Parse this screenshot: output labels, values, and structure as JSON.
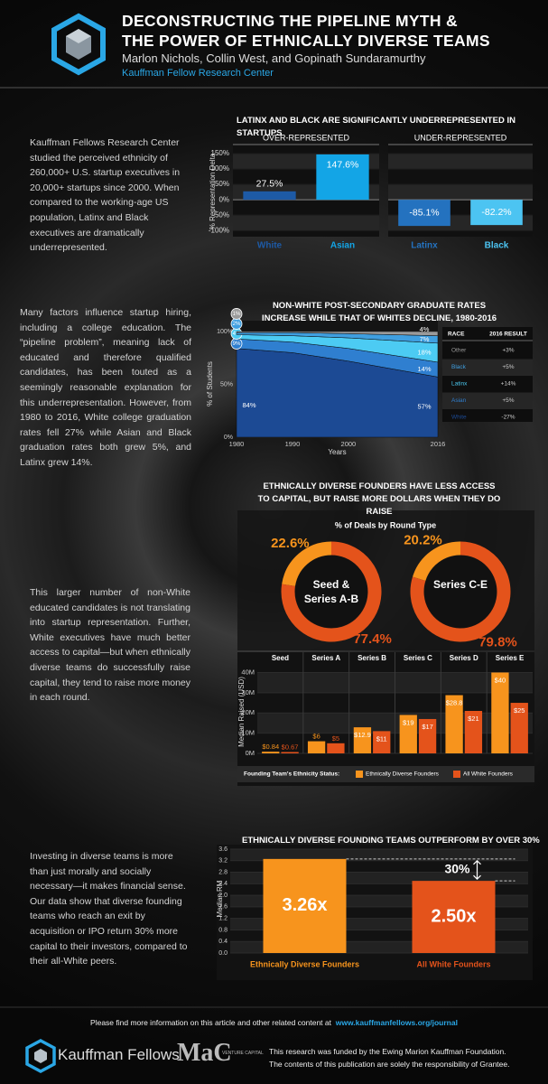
{
  "header": {
    "title_lines": [
      "DECONSTRUCTING THE PIPELINE MYTH &",
      "THE POWER OF ETHNICALLY DIVERSE TEAMS"
    ],
    "authors": "Marlon Nichols, Collin West, and Gopinath Sundaramurthy",
    "organization": "Kauffman Fellow Research Center"
  },
  "paragraphs": [
    "Kauffman Fellows Research Center studied the perceived ethnicity of 260,000+ U.S. startup executives in 20,000+ startups since 2000. When compared to the working-age US population, Latinx and Black executives are dramatically underrepresented.",
    "Many factors influence startup hiring, including a college education. The “pipeline problem”, meaning lack of educated and therefore qualified candidates, has been touted as a seemingly reasonable explanation for this underrepresentation. However, from 1980 to 2016, White college graduation rates fell 27% while Asian and Black graduation rates both grew 5%, and Latinx grew 14%.",
    "This larger number of non-White educated candidates is not translating into startup representation. Further, White executives have much better access to capital—but when ethnically diverse teams do successfully raise capital, they tend to raise more money in each round.",
    "Investing in diverse teams is more than just morally and socially necessary—it makes financial sense. Our data show that diverse founding teams who reach an exit by acquisition or IPO return 30% more capital to their investors, compared to their all-White peers."
  ],
  "chart_data": [
    {
      "type": "bar",
      "title": "LATINX AND BLACK ARE SIGNIFICANTLY UNDERREPRESENTED IN STARTUPS",
      "panel_labels": [
        "OVER-REPRESENTED",
        "UNDER-REPRESENTED"
      ],
      "y_label": "% Representation Delta",
      "categories": [
        "White",
        "Asian",
        "Latinx",
        "Black"
      ],
      "values": [
        27.5,
        147.6,
        -85.1,
        -82.2
      ],
      "value_labels": [
        "27.5%",
        "147.6%",
        "-85.1%",
        "-82.2%"
      ],
      "colors": [
        "#1d5aa6",
        "#13a5e6",
        "#2472bf",
        "#4cc4f2"
      ],
      "ylim": [
        -120,
        165
      ],
      "yticks": [
        {
          "value": 150,
          "label": "150%"
        },
        {
          "value": 100,
          "label": "100%"
        },
        {
          "value": 50,
          "label": "50%"
        },
        {
          "value": 0,
          "label": "0%"
        },
        {
          "value": -50,
          "label": "-50%"
        },
        {
          "value": -100,
          "label": "-100%"
        }
      ]
    },
    {
      "type": "area",
      "title": "NON-WHITE POST-SECONDARY GRADUATE RATES INCREASE WHILE THAT OF WHITES DECLINE, 1980-2016",
      "x_label": "Years",
      "y_label": "% of Students",
      "stacked": true,
      "x": [
        1980,
        1990,
        2000,
        2016
      ],
      "xlim": [
        1980,
        2016
      ],
      "xticks": [
        1980,
        1990,
        2000,
        2016
      ],
      "ylim": [
        0,
        100
      ],
      "yticks": [
        {
          "value": 0,
          "label": "0%"
        },
        {
          "value": 50,
          "label": "50%"
        },
        {
          "value": 100,
          "label": "100%"
        }
      ],
      "table_headers": [
        "RACE",
        "2016 RESULT"
      ],
      "series": [
        {
          "name": "White",
          "color": "#1c4a94",
          "values": [
            84,
            80,
            72,
            57
          ],
          "value_labels": [
            "84%",
            null,
            null,
            "57%"
          ],
          "result": "-27%"
        },
        {
          "name": "Asian",
          "color": "#2f7fd0",
          "values": [
            9,
            10,
            12,
            14
          ],
          "value_labels": [
            "9%",
            null,
            null,
            "14%"
          ],
          "result": "+5%"
        },
        {
          "name": "Latinx",
          "color": "#4ccbf3",
          "values": [
            4,
            6,
            10,
            18
          ],
          "value_labels": [
            "4%",
            null,
            null,
            "18%"
          ],
          "result": "+14%"
        },
        {
          "name": "Black",
          "color": "#3f9fe0",
          "values": [
            2,
            3,
            4,
            7
          ],
          "value_labels": [
            "2%",
            null,
            null,
            "7%"
          ],
          "result": "+5%"
        },
        {
          "name": "Other",
          "color": "#9a9a9a",
          "values": [
            1,
            1,
            2,
            4
          ],
          "value_labels": [
            "1%",
            null,
            null,
            "4%"
          ],
          "result": "+3%"
        }
      ]
    },
    {
      "type": "donut",
      "title": "ETHNICALLY DIVERSE FOUNDERS HAVE LESS ACCESS TO CAPITAL, BUT RAISE MORE DOLLARS WHEN THEY DO RAISE",
      "subtitle": "% of Deals by Round Type",
      "colors": [
        "#f7941d",
        "#e4531b"
      ],
      "pies": [
        {
          "label": "Seed & Series A-B",
          "values": [
            22.6,
            77.4
          ],
          "value_labels": [
            "22.6%",
            "77.4%"
          ]
        },
        {
          "label": "Series C-E",
          "values": [
            20.2,
            79.8
          ],
          "value_labels": [
            "20.2%",
            "79.8%"
          ]
        }
      ]
    },
    {
      "type": "grouped_bar",
      "y_label": "Median Raised (USD)",
      "legend_title": "Founding Team's Ethnicity Status:",
      "categories": [
        "Seed",
        "Series A",
        "Series B",
        "Series C",
        "Series D",
        "Series E"
      ],
      "ylim": [
        0,
        42
      ],
      "yticks": [
        {
          "value": 0,
          "label": "0M"
        },
        {
          "value": 10,
          "label": "10M"
        },
        {
          "value": 20,
          "label": "20M"
        },
        {
          "value": 30,
          "label": "30M"
        },
        {
          "value": 40,
          "label": "40M"
        }
      ],
      "series": [
        {
          "name": "Ethnically Diverse Founders",
          "color": "#f7941d",
          "values": [
            0.84,
            6,
            12.9,
            19,
            28.8,
            40
          ],
          "value_labels": [
            "$0.84",
            "$6",
            "$12.9",
            "$19",
            "$28.8",
            "$40"
          ]
        },
        {
          "name": "All White Founders",
          "color": "#e4531b",
          "values": [
            0.67,
            5,
            11,
            17,
            21,
            25
          ],
          "value_labels": [
            "$0.67",
            "$5",
            "$11",
            "$17",
            "$21",
            "$25"
          ]
        }
      ]
    },
    {
      "type": "bar",
      "title": "ETHNICALLY DIVERSE FOUNDING TEAMS OUTPERFORM BY OVER 30%",
      "y_label": "Median RM",
      "annotation": "30%",
      "categories": [
        "Ethnically Diverse Founders",
        "All White Founders"
      ],
      "values": [
        3.26,
        2.5
      ],
      "value_labels": [
        "3.26x",
        "2.50x"
      ],
      "colors": [
        "#f7941d",
        "#e4531b"
      ],
      "ylim": [
        0,
        3.6
      ],
      "yticks": [
        {
          "value": 0,
          "label": "0.0"
        },
        0.4,
        0.8,
        1.2,
        1.6,
        {
          "value": 2,
          "label": "2.0"
        },
        2.4,
        2.8,
        3.2,
        3.6
      ]
    }
  ],
  "footer": {
    "more_info": "Please find more information on this article and other related content at",
    "link": "www.kauffmanfellows.org/journal",
    "logo_kauffman": "Kauffman Fellows",
    "logo_mac": "MaC",
    "logo_mac_sub": "VENTURE CAPITAL",
    "funding_lines": [
      "This research was funded by the Ewing Marion Kauffman Foundation.",
      "The contents of this publication are solely the responsibility of Grantee."
    ]
  }
}
